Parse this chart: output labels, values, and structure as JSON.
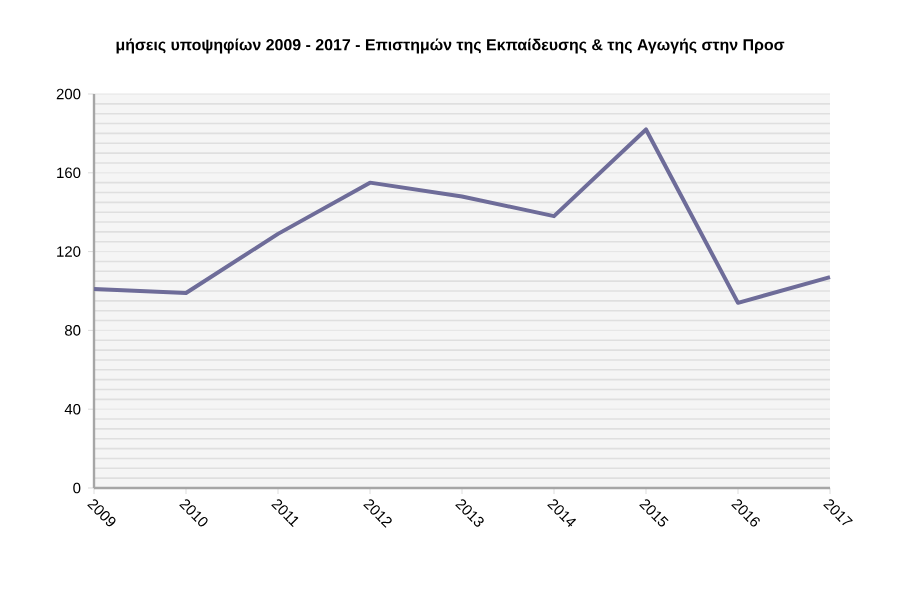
{
  "chart_data": {
    "type": "line",
    "title": "μήσεις υποψηφίων 2009 - 2017 - Επιστημών της Εκπαίδευσης & της Αγωγής στην Προσ",
    "categories": [
      "2009",
      "2010",
      "2011",
      "2012",
      "2013",
      "2014",
      "2015",
      "2016",
      "2017"
    ],
    "series": [
      {
        "color": "#6e6c99",
        "values": [
          101,
          99,
          129,
          155,
          148,
          138,
          182,
          94,
          107
        ]
      }
    ],
    "ylim": [
      0,
      200
    ],
    "yticks": [
      0,
      40,
      80,
      120,
      160,
      200
    ],
    "grid": "y",
    "marker": "none",
    "line_style": "solid"
  }
}
